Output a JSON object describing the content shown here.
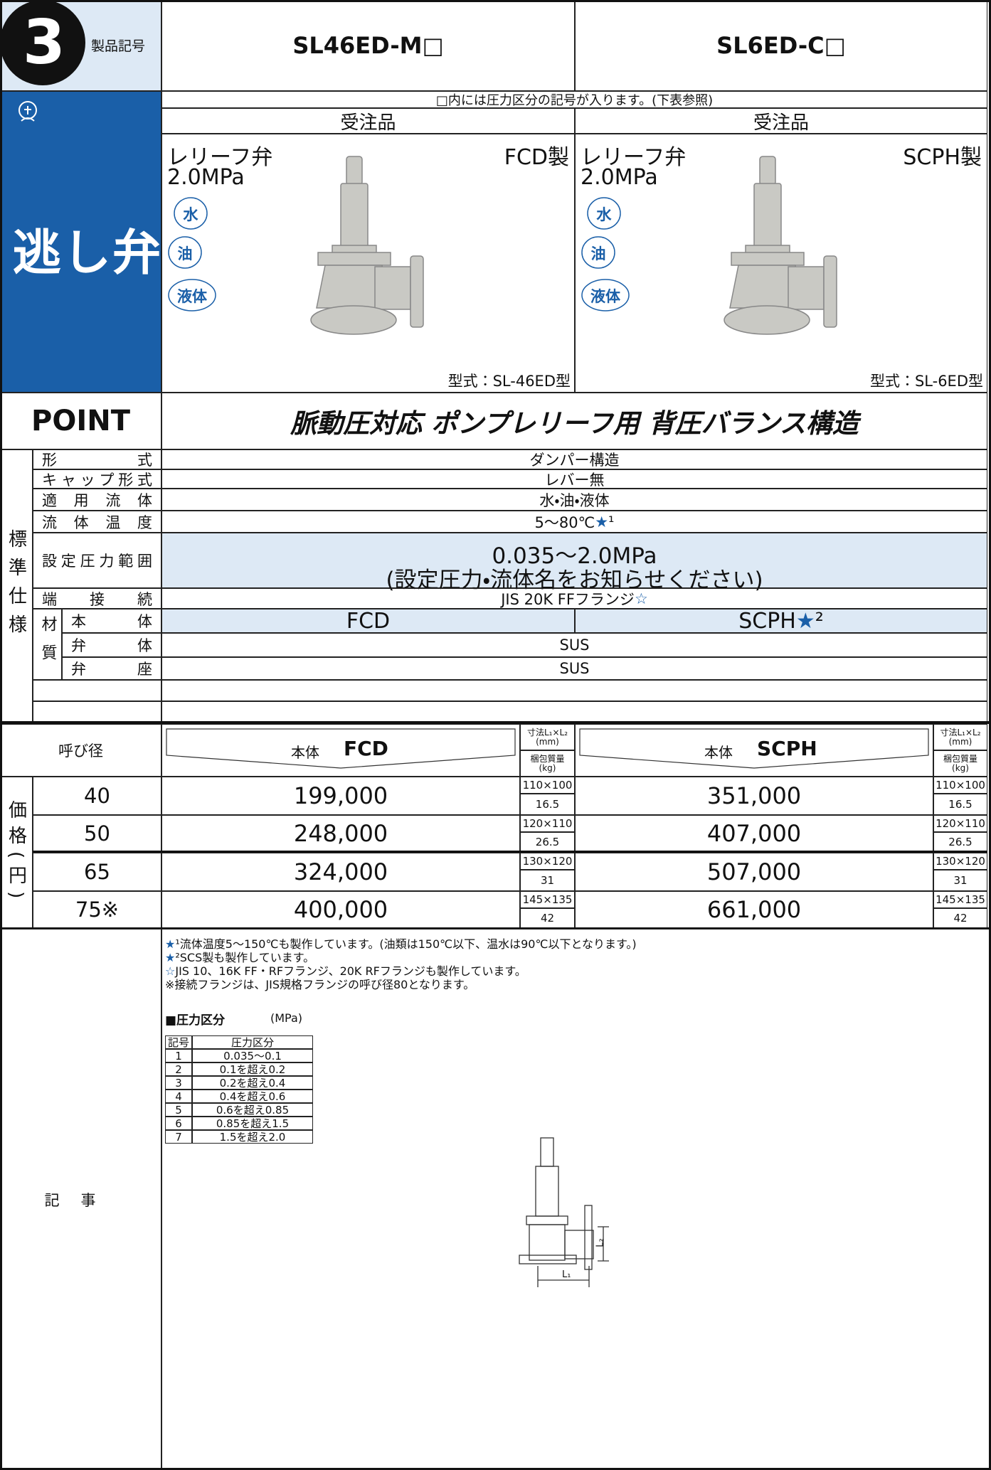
{
  "header": {
    "number": "3",
    "label": "製品記号",
    "models": [
      "SL46ED-M□",
      "SL6ED-C□"
    ]
  },
  "note_row": "□内には圧力区分の記号が入ります。(下表参照)",
  "category": "逃し弁",
  "order": [
    "受注品",
    "受注品"
  ],
  "products": [
    {
      "name": "レリーフ弁",
      "pressure": "2.0MPa",
      "material": "FCD製",
      "fluids": [
        "水",
        "油",
        "液体"
      ],
      "model": "型式：SL-46ED型"
    },
    {
      "name": "レリーフ弁",
      "pressure": "2.0MPa",
      "material": "SCPH製",
      "fluids": [
        "水",
        "油",
        "液体"
      ],
      "model": "型式：SL-6ED型"
    }
  ],
  "point": {
    "label": "POINT",
    "text": "脈動圧対応 ポンプレリーフ用 背圧バランス構造"
  },
  "spec": {
    "label": "標準仕様",
    "rows": [
      {
        "label": "形式",
        "value": "ダンパー構造"
      },
      {
        "label": "キャップ形式",
        "value": "レバー無"
      },
      {
        "label": "適用流体",
        "value": "水・油・液体"
      },
      {
        "label": "流体温度",
        "value": "5～80℃★¹"
      }
    ],
    "pressure_range": {
      "label": "設定圧力範囲",
      "lines": [
        "0.035～2.0MPa",
        "(設定圧力・流体名をお知らせください)"
      ]
    },
    "connection": {
      "label": "端接続",
      "value": "JIS 20K FFフランジ☆"
    },
    "material": {
      "label": "材質",
      "body": {
        "label": "本体",
        "values": [
          "FCD",
          "SCPH★²"
        ]
      },
      "rows": [
        {
          "label": "弁体",
          "value": "SUS"
        },
        {
          "label": "弁座",
          "value": "SUS"
        }
      ]
    }
  },
  "price": {
    "label": "価格(円)",
    "size_label": "呼び径",
    "headers": [
      {
        "body": "本体",
        "material": "FCD"
      },
      {
        "body": "本体",
        "material": "SCPH"
      }
    ],
    "dim_label": "寸法L₁×L₂ (mm)",
    "weight_label": "梱包質量 (kg)",
    "rows": [
      {
        "size": "40",
        "prices": [
          "199,000",
          "351,000"
        ],
        "dims": [
          "110×100",
          "110×100"
        ],
        "weights": [
          "16.5",
          "16.5"
        ]
      },
      {
        "size": "50",
        "prices": [
          "248,000",
          "407,000"
        ],
        "dims": [
          "120×110",
          "120×110"
        ],
        "weights": [
          "26.5",
          "26.5"
        ]
      },
      {
        "size": "65",
        "prices": [
          "324,000",
          "507,000"
        ],
        "dims": [
          "130×120",
          "130×120"
        ],
        "weights": [
          "31",
          "31"
        ]
      },
      {
        "size": "75※",
        "prices": [
          "400,000",
          "661,000"
        ],
        "dims": [
          "145×135",
          "145×135"
        ],
        "weights": [
          "42",
          "42"
        ]
      }
    ]
  },
  "notes": {
    "label": "記事",
    "lines": [
      "★¹流体温度5～150℃も製作しています。(油類は150℃以下、温水は90℃以下となります。)",
      "★²SCS製も製作しています。",
      "☆JIS 10、16K FF・RFフランジ、20K RFフランジも製作しています。",
      "※接続フランジは、JIS規格フランジの呼び径80となります。"
    ],
    "pressure_table": {
      "title": "■圧力区分",
      "unit": "(MPa)",
      "headers": [
        "記号",
        "圧力区分"
      ],
      "rows": [
        [
          "1",
          "0.035～0.1"
        ],
        [
          "2",
          "0.1を超え0.2"
        ],
        [
          "3",
          "0.2を超え0.4"
        ],
        [
          "4",
          "0.4を超え0.6"
        ],
        [
          "5",
          "0.6を超え0.85"
        ],
        [
          "6",
          "0.85を超え1.5"
        ],
        [
          "7",
          "1.5を超え2.0"
        ]
      ]
    },
    "drawing_labels": [
      "L₁",
      "L₂"
    ]
  }
}
